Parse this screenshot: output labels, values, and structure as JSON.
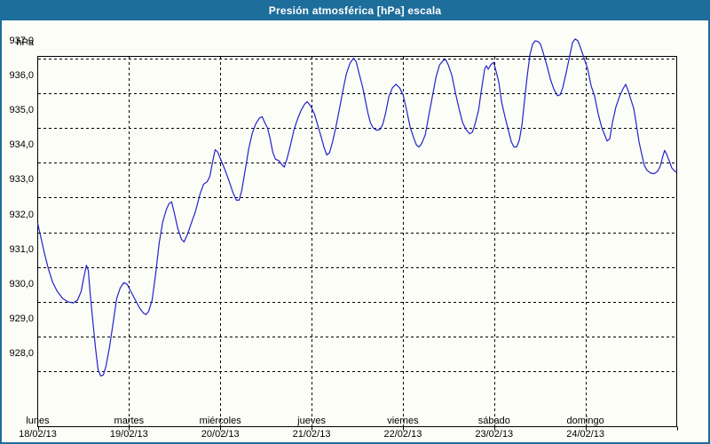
{
  "window": {
    "title": "Presión atmosférica [hPa] escala"
  },
  "colors": {
    "titlebar_bg": "#1e6e9c",
    "window_border": "#1e6e9c",
    "content_bg": "#fdfdf8",
    "line": "#2323cb",
    "grid": "#000000",
    "axis_border": "#000000",
    "text": "#000000",
    "title_text": "#ffffff"
  },
  "chart_data": {
    "type": "line",
    "title": "Presión atmosférica [hPa] escala",
    "unit_label": "hPa",
    "grid": "dashed-black",
    "legend": "none",
    "y_axis": {
      "gridline_min": 928,
      "gridline_max": 937,
      "approx_range": [
        927.4,
        938.1
      ],
      "ticks": [
        {
          "value": 937,
          "label": "937,0"
        },
        {
          "value": 936,
          "label": "936,0"
        },
        {
          "value": 935,
          "label": "935,0"
        },
        {
          "value": 934,
          "label": "934,0"
        },
        {
          "value": 933,
          "label": "933,0"
        },
        {
          "value": 932,
          "label": "932,0"
        },
        {
          "value": 931,
          "label": "931,0"
        },
        {
          "value": 930,
          "label": "930,0"
        },
        {
          "value": 929,
          "label": "929,0"
        },
        {
          "value": 928,
          "label": "928,0"
        }
      ]
    },
    "x_axis": {
      "unit": "day",
      "span_days": 7,
      "days": [
        {
          "name": "lunes",
          "date": "18/02/13"
        },
        {
          "name": "martes",
          "date": "19/02/13"
        },
        {
          "name": "miércoles",
          "date": "20/02/13"
        },
        {
          "name": "jueves",
          "date": "21/02/13"
        },
        {
          "name": "viernes",
          "date": "22/02/13"
        },
        {
          "name": "sábado",
          "date": "23/02/13"
        },
        {
          "name": "domingo",
          "date": "24/02/13"
        }
      ]
    },
    "series": [
      {
        "name": "presión atmosférica",
        "color": "#2323cb",
        "points": [
          [
            0.0,
            932.25
          ],
          [
            0.039,
            931.8
          ],
          [
            0.078,
            931.35
          ],
          [
            0.117,
            930.95
          ],
          [
            0.165,
            930.55
          ],
          [
            0.214,
            930.3
          ],
          [
            0.272,
            930.1
          ],
          [
            0.33,
            930.0
          ],
          [
            0.389,
            929.97
          ],
          [
            0.437,
            930.05
          ],
          [
            0.476,
            930.3
          ],
          [
            0.505,
            930.7
          ],
          [
            0.534,
            931.05
          ],
          [
            0.554,
            930.9
          ],
          [
            0.573,
            930.3
          ],
          [
            0.602,
            929.5
          ],
          [
            0.632,
            928.7
          ],
          [
            0.661,
            928.05
          ],
          [
            0.69,
            927.87
          ],
          [
            0.719,
            927.9
          ],
          [
            0.748,
            928.15
          ],
          [
            0.787,
            928.7
          ],
          [
            0.826,
            929.4
          ],
          [
            0.865,
            930.1
          ],
          [
            0.904,
            930.4
          ],
          [
            0.942,
            930.55
          ],
          [
            0.981,
            930.5
          ],
          [
            1.02,
            930.3
          ],
          [
            1.069,
            930.05
          ],
          [
            1.117,
            929.82
          ],
          [
            1.156,
            929.68
          ],
          [
            1.185,
            929.63
          ],
          [
            1.214,
            929.72
          ],
          [
            1.253,
            930.05
          ],
          [
            1.292,
            930.8
          ],
          [
            1.331,
            931.7
          ],
          [
            1.37,
            932.3
          ],
          [
            1.409,
            932.65
          ],
          [
            1.438,
            932.82
          ],
          [
            1.467,
            932.87
          ],
          [
            1.496,
            932.55
          ],
          [
            1.535,
            932.1
          ],
          [
            1.574,
            931.8
          ],
          [
            1.603,
            931.72
          ],
          [
            1.642,
            931.95
          ],
          [
            1.681,
            932.25
          ],
          [
            1.729,
            932.6
          ],
          [
            1.778,
            933.1
          ],
          [
            1.817,
            933.38
          ],
          [
            1.856,
            933.45
          ],
          [
            1.885,
            933.6
          ],
          [
            1.914,
            934.0
          ],
          [
            1.943,
            934.37
          ],
          [
            1.972,
            934.3
          ],
          [
            2.011,
            934.05
          ],
          [
            2.05,
            933.8
          ],
          [
            2.099,
            933.45
          ],
          [
            2.137,
            933.15
          ],
          [
            2.176,
            932.92
          ],
          [
            2.206,
            932.92
          ],
          [
            2.235,
            933.2
          ],
          [
            2.274,
            933.8
          ],
          [
            2.312,
            934.4
          ],
          [
            2.351,
            934.85
          ],
          [
            2.39,
            935.12
          ],
          [
            2.429,
            935.28
          ],
          [
            2.458,
            935.32
          ],
          [
            2.487,
            935.15
          ],
          [
            2.516,
            935.0
          ],
          [
            2.545,
            934.7
          ],
          [
            2.574,
            934.3
          ],
          [
            2.604,
            934.1
          ],
          [
            2.643,
            934.05
          ],
          [
            2.672,
            933.95
          ],
          [
            2.701,
            933.87
          ],
          [
            2.73,
            934.1
          ],
          [
            2.769,
            934.5
          ],
          [
            2.808,
            934.95
          ],
          [
            2.847,
            935.25
          ],
          [
            2.885,
            935.5
          ],
          [
            2.924,
            935.68
          ],
          [
            2.953,
            935.75
          ],
          [
            2.992,
            935.62
          ],
          [
            3.031,
            935.4
          ],
          [
            3.07,
            935.05
          ],
          [
            3.109,
            934.7
          ],
          [
            3.138,
            934.42
          ],
          [
            3.167,
            934.22
          ],
          [
            3.196,
            934.28
          ],
          [
            3.226,
            934.55
          ],
          [
            3.265,
            935.0
          ],
          [
            3.303,
            935.5
          ],
          [
            3.342,
            936.05
          ],
          [
            3.381,
            936.55
          ],
          [
            3.42,
            936.85
          ],
          [
            3.459,
            937.0
          ],
          [
            3.488,
            936.9
          ],
          [
            3.517,
            936.6
          ],
          [
            3.556,
            936.2
          ],
          [
            3.585,
            935.85
          ],
          [
            3.615,
            935.45
          ],
          [
            3.644,
            935.15
          ],
          [
            3.673,
            935.0
          ],
          [
            3.711,
            934.93
          ],
          [
            3.75,
            934.95
          ],
          [
            3.78,
            935.1
          ],
          [
            3.809,
            935.4
          ],
          [
            3.847,
            935.9
          ],
          [
            3.886,
            936.15
          ],
          [
            3.925,
            936.25
          ],
          [
            3.964,
            936.15
          ],
          [
            4.003,
            935.95
          ],
          [
            4.042,
            935.5
          ],
          [
            4.081,
            935.0
          ],
          [
            4.12,
            934.7
          ],
          [
            4.149,
            934.5
          ],
          [
            4.178,
            934.45
          ],
          [
            4.207,
            934.55
          ],
          [
            4.246,
            934.8
          ],
          [
            4.284,
            935.35
          ],
          [
            4.323,
            935.9
          ],
          [
            4.362,
            936.45
          ],
          [
            4.401,
            936.8
          ],
          [
            4.44,
            936.93
          ],
          [
            4.469,
            936.96
          ],
          [
            4.498,
            936.8
          ],
          [
            4.537,
            936.5
          ],
          [
            4.576,
            936.0
          ],
          [
            4.615,
            935.55
          ],
          [
            4.654,
            935.15
          ],
          [
            4.693,
            934.95
          ],
          [
            4.731,
            934.83
          ],
          [
            4.761,
            934.87
          ],
          [
            4.79,
            935.1
          ],
          [
            4.829,
            935.5
          ],
          [
            4.867,
            936.2
          ],
          [
            4.897,
            936.7
          ],
          [
            4.916,
            936.78
          ],
          [
            4.935,
            936.68
          ],
          [
            4.965,
            936.82
          ],
          [
            4.994,
            936.88
          ],
          [
            5.023,
            936.6
          ],
          [
            5.052,
            936.3
          ],
          [
            5.081,
            935.75
          ],
          [
            5.12,
            935.3
          ],
          [
            5.159,
            934.9
          ],
          [
            5.188,
            934.6
          ],
          [
            5.217,
            934.45
          ],
          [
            5.246,
            934.45
          ],
          [
            5.276,
            934.65
          ],
          [
            5.305,
            935.1
          ],
          [
            5.334,
            935.8
          ],
          [
            5.363,
            936.5
          ],
          [
            5.392,
            937.1
          ],
          [
            5.421,
            937.4
          ],
          [
            5.45,
            937.5
          ],
          [
            5.479,
            937.48
          ],
          [
            5.509,
            937.4
          ],
          [
            5.538,
            937.15
          ],
          [
            5.577,
            936.8
          ],
          [
            5.616,
            936.4
          ],
          [
            5.655,
            936.1
          ],
          [
            5.694,
            935.92
          ],
          [
            5.723,
            935.95
          ],
          [
            5.752,
            936.15
          ],
          [
            5.791,
            936.6
          ],
          [
            5.83,
            937.1
          ],
          [
            5.859,
            937.45
          ],
          [
            5.888,
            937.55
          ],
          [
            5.917,
            937.5
          ],
          [
            5.946,
            937.3
          ],
          [
            5.985,
            937.0
          ],
          [
            6.024,
            936.7
          ],
          [
            6.063,
            936.2
          ],
          [
            6.102,
            935.9
          ],
          [
            6.14,
            935.4
          ],
          [
            6.179,
            935.0
          ],
          [
            6.208,
            934.82
          ],
          [
            6.237,
            934.62
          ],
          [
            6.266,
            934.68
          ],
          [
            6.296,
            935.15
          ],
          [
            6.334,
            935.6
          ],
          [
            6.373,
            935.9
          ],
          [
            6.412,
            936.12
          ],
          [
            6.441,
            936.25
          ],
          [
            6.47,
            936.05
          ],
          [
            6.499,
            935.8
          ],
          [
            6.529,
            935.55
          ],
          [
            6.558,
            935.1
          ],
          [
            6.587,
            934.6
          ],
          [
            6.616,
            934.25
          ],
          [
            6.645,
            933.92
          ],
          [
            6.674,
            933.78
          ],
          [
            6.713,
            933.7
          ],
          [
            6.752,
            933.68
          ],
          [
            6.791,
            933.75
          ],
          [
            6.82,
            933.9
          ],
          [
            6.849,
            934.2
          ],
          [
            6.868,
            934.35
          ],
          [
            6.888,
            934.25
          ],
          [
            6.917,
            934.05
          ],
          [
            6.946,
            933.85
          ],
          [
            6.975,
            933.76
          ],
          [
            6.995,
            933.73
          ]
        ]
      }
    ]
  }
}
